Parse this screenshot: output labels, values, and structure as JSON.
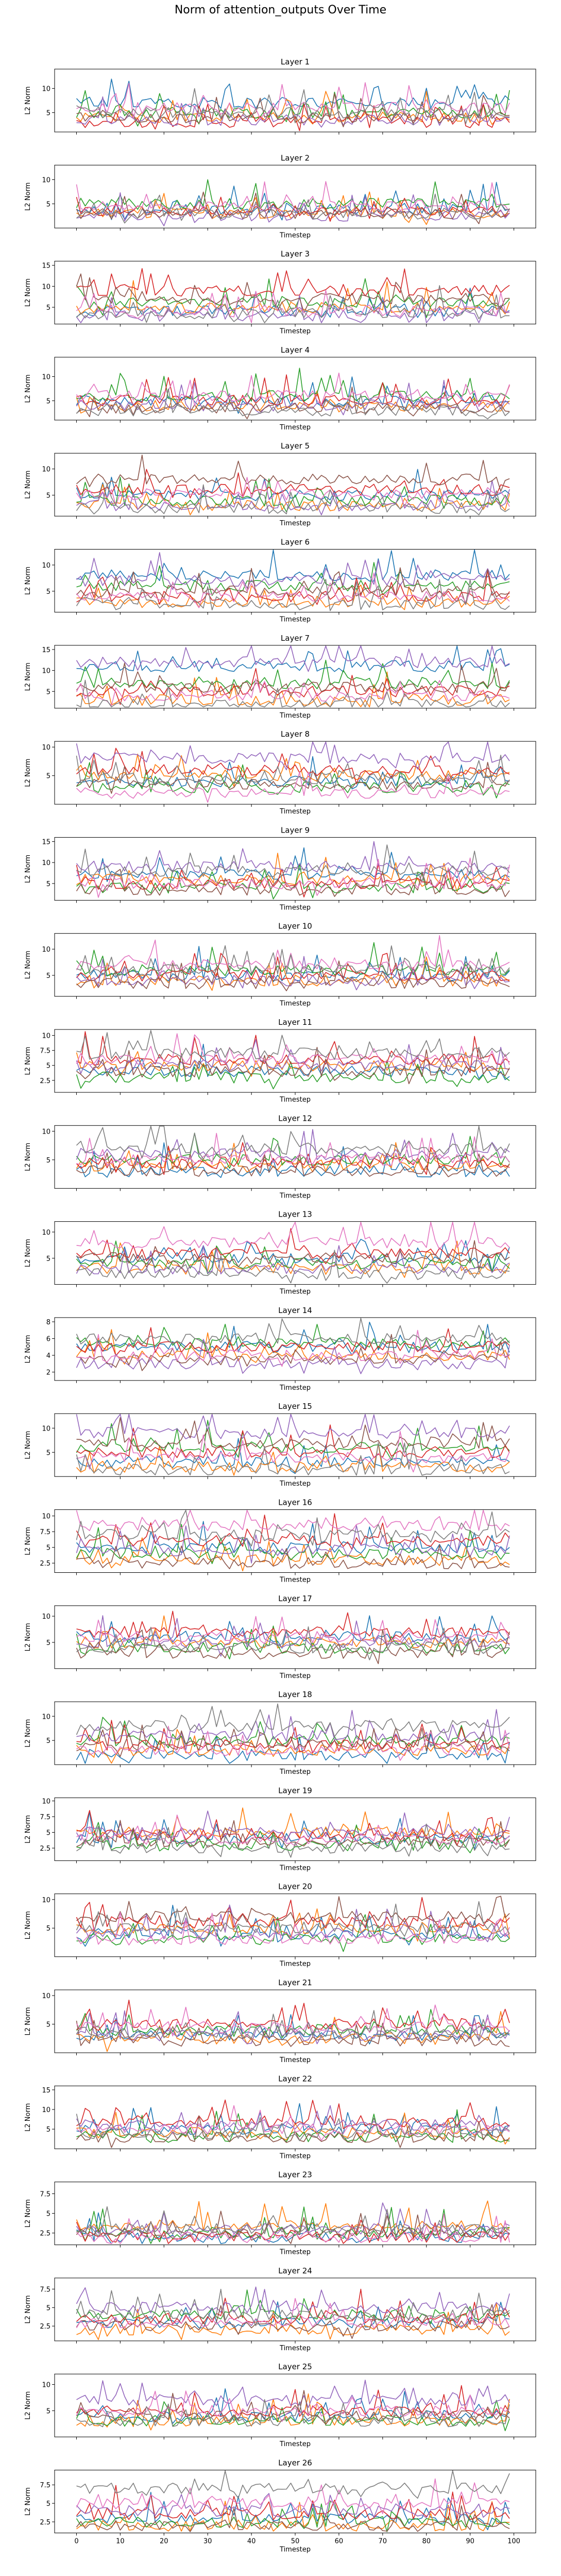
{
  "figure": {
    "suptitle": "Norm of attention_outputs Over Time"
  },
  "colors": [
    "#1f77b4",
    "#ff7f0e",
    "#2ca02c",
    "#d62728",
    "#9467bd",
    "#8c564b",
    "#e377c2",
    "#7f7f7f"
  ],
  "chart_data": [
    {
      "type": "line",
      "title": "Layer 1",
      "xlabel": "",
      "ylabel": "L2 Norm",
      "xlim": [
        -5,
        105
      ],
      "ylim": [
        1,
        14
      ],
      "yticks": [
        5,
        10
      ],
      "xticks": [
        0,
        10,
        20,
        30,
        40,
        50,
        60,
        70,
        80,
        90,
        100
      ],
      "series_levels": [
        7,
        4,
        5,
        3,
        3.5,
        4,
        6,
        5
      ]
    },
    {
      "type": "line",
      "title": "Layer 2",
      "xlabel": "Timestep",
      "ylabel": "L2 Norm",
      "xlim": [
        -5,
        105
      ],
      "ylim": [
        0,
        13
      ],
      "yticks": [
        5,
        10
      ],
      "xticks": [
        0,
        10,
        20,
        30,
        40,
        50,
        60,
        70,
        80,
        90,
        100
      ],
      "series_levels": [
        4,
        3,
        5,
        3.5,
        2.5,
        3,
        4.5,
        3
      ]
    },
    {
      "type": "line",
      "title": "Layer 3",
      "xlabel": "Timestep",
      "ylabel": "L2 Norm",
      "xlim": [
        -5,
        105
      ],
      "ylim": [
        1,
        16
      ],
      "yticks": [
        5,
        10,
        15
      ],
      "xticks": [
        0,
        10,
        20,
        30,
        40,
        50,
        60,
        70,
        80,
        90,
        100
      ],
      "series_levels": [
        4,
        5,
        6,
        9,
        3,
        7,
        4,
        3.5
      ]
    },
    {
      "type": "line",
      "title": "Layer 4",
      "xlabel": "Timestep",
      "ylabel": "L2 Norm",
      "xlim": [
        -5,
        105
      ],
      "ylim": [
        1,
        14
      ],
      "yticks": [
        5,
        10
      ],
      "xticks": [
        0,
        10,
        20,
        30,
        40,
        50,
        60,
        70,
        80,
        90,
        100
      ],
      "series_levels": [
        5,
        4,
        6,
        5,
        4,
        3.5,
        6,
        3
      ]
    },
    {
      "type": "line",
      "title": "Layer 5",
      "xlabel": "Timestep",
      "ylabel": "L2 Norm",
      "xlim": [
        -5,
        105
      ],
      "ylim": [
        1,
        13
      ],
      "yticks": [
        5,
        10
      ],
      "xticks": [
        0,
        10,
        20,
        30,
        40,
        50,
        60,
        70,
        80,
        90,
        100
      ],
      "series_levels": [
        5,
        3,
        4,
        6,
        3,
        8,
        5,
        2.5
      ]
    },
    {
      "type": "line",
      "title": "Layer 6",
      "xlabel": "Timestep",
      "ylabel": "L2 Norm",
      "xlim": [
        -5,
        105
      ],
      "ylim": [
        1,
        13
      ],
      "yticks": [
        5,
        10
      ],
      "xticks": [
        0,
        10,
        20,
        30,
        40,
        50,
        60,
        70,
        80,
        90,
        100
      ],
      "series_levels": [
        8,
        3,
        6,
        4,
        7,
        5,
        4,
        2.5
      ]
    },
    {
      "type": "line",
      "title": "Layer 7",
      "xlabel": "Timestep",
      "ylabel": "L2 Norm",
      "xlim": [
        -5,
        105
      ],
      "ylim": [
        1,
        16
      ],
      "yticks": [
        5,
        10,
        15
      ],
      "xticks": [
        0,
        10,
        20,
        30,
        40,
        50,
        60,
        70,
        80,
        90,
        100
      ],
      "series_levels": [
        11,
        3,
        7,
        5,
        12,
        6,
        4,
        2
      ]
    },
    {
      "type": "line",
      "title": "Layer 8",
      "xlabel": "Timestep",
      "ylabel": "L2 Norm",
      "xlim": [
        -5,
        105
      ],
      "ylim": [
        0,
        11
      ],
      "yticks": [
        5,
        10
      ],
      "xticks": [
        0,
        10,
        20,
        30,
        40,
        50,
        60,
        70,
        80,
        90,
        100
      ],
      "series_levels": [
        4,
        5,
        3,
        6,
        8,
        3.5,
        2,
        4.5
      ]
    },
    {
      "type": "line",
      "title": "Layer 9",
      "xlabel": "Timestep",
      "ylabel": "L2 Norm",
      "xlim": [
        -5,
        105
      ],
      "ylim": [
        1,
        16
      ],
      "yticks": [
        5,
        10,
        15
      ],
      "xticks": [
        0,
        10,
        20,
        30,
        40,
        50,
        60,
        70,
        80,
        90,
        100
      ],
      "series_levels": [
        7,
        6,
        4,
        5,
        9,
        3.5,
        5,
        8
      ]
    },
    {
      "type": "line",
      "title": "Layer 10",
      "xlabel": "Timestep",
      "ylabel": "L2 Norm",
      "xlim": [
        -5,
        105
      ],
      "ylim": [
        1,
        13
      ],
      "yticks": [
        5,
        10
      ],
      "xticks": [
        0,
        10,
        20,
        30,
        40,
        50,
        60,
        70,
        80,
        90,
        100
      ],
      "series_levels": [
        5,
        4,
        6,
        5,
        4,
        3.5,
        7,
        6
      ]
    },
    {
      "type": "line",
      "title": "Layer 11",
      "xlabel": "Timestep",
      "ylabel": "L2 Norm",
      "xlim": [
        -5,
        105
      ],
      "ylim": [
        0.5,
        11
      ],
      "yticks": [
        2.5,
        5.0,
        7.5,
        10.0
      ],
      "xticks": [
        0,
        10,
        20,
        30,
        40,
        50,
        60,
        70,
        80,
        90,
        100
      ],
      "series_levels": [
        4,
        5,
        3,
        6,
        5,
        4,
        6,
        7
      ]
    },
    {
      "type": "line",
      "title": "Layer 12",
      "xlabel": "Timestep",
      "ylabel": "L2 Norm",
      "xlim": [
        -5,
        105
      ],
      "ylim": [
        0,
        11
      ],
      "yticks": [
        5,
        10
      ],
      "xticks": [
        0,
        10,
        20,
        30,
        40,
        50,
        60,
        70,
        80,
        90,
        100
      ],
      "series_levels": [
        3,
        4,
        5,
        4.5,
        6,
        3,
        5,
        7
      ]
    },
    {
      "type": "line",
      "title": "Layer 13",
      "xlabel": "Timestep",
      "ylabel": "L2 Norm",
      "xlim": [
        -5,
        105
      ],
      "ylim": [
        0,
        12
      ],
      "yticks": [
        5,
        10
      ],
      "xticks": [
        0,
        10,
        20,
        30,
        40,
        50,
        60,
        70,
        80,
        90,
        100
      ],
      "series_levels": [
        5,
        3,
        4,
        6,
        3,
        5,
        8,
        2
      ]
    },
    {
      "type": "line",
      "title": "Layer 14",
      "xlabel": "Timestep",
      "ylabel": "L2 Norm",
      "xlim": [
        -5,
        105
      ],
      "ylim": [
        1,
        8.5
      ],
      "yticks": [
        2,
        4,
        6,
        8
      ],
      "xticks": [
        0,
        10,
        20,
        30,
        40,
        50,
        60,
        70,
        80,
        90,
        100
      ],
      "series_levels": [
        5,
        4,
        5.5,
        5,
        3,
        3.5,
        4,
        6
      ]
    },
    {
      "type": "line",
      "title": "Layer 15",
      "xlabel": "Timestep",
      "ylabel": "L2 Norm",
      "xlim": [
        -5,
        105
      ],
      "ylim": [
        0,
        13
      ],
      "yticks": [
        5,
        10
      ],
      "xticks": [
        0,
        10,
        20,
        30,
        40,
        50,
        60,
        70,
        80,
        90,
        100
      ],
      "series_levels": [
        3,
        2,
        6,
        5,
        9,
        7,
        4,
        1.5
      ]
    },
    {
      "type": "line",
      "title": "Layer 16",
      "xlabel": "Timestep",
      "ylabel": "L2 Norm",
      "xlim": [
        -5,
        105
      ],
      "ylim": [
        1,
        11
      ],
      "yticks": [
        2.5,
        5.0,
        7.5,
        10.0
      ],
      "xticks": [
        0,
        10,
        20,
        30,
        40,
        50,
        60,
        70,
        80,
        90,
        100
      ],
      "series_levels": [
        5,
        3,
        4,
        6,
        4.5,
        2.5,
        8.5,
        7
      ]
    },
    {
      "type": "line",
      "title": "Layer 17",
      "xlabel": "Timestep",
      "ylabel": "L2 Norm",
      "xlim": [
        -5,
        105
      ],
      "ylim": [
        0,
        12
      ],
      "yticks": [
        5,
        10
      ],
      "xticks": [
        0,
        10,
        20,
        30,
        40,
        50,
        60,
        70,
        80,
        90,
        100
      ],
      "series_levels": [
        6,
        5,
        4,
        7,
        5,
        3,
        6,
        4
      ]
    },
    {
      "type": "line",
      "title": "Layer 18",
      "xlabel": "Timestep",
      "ylabel": "L2 Norm",
      "xlim": [
        -5,
        105
      ],
      "ylim": [
        0,
        13
      ],
      "yticks": [
        5,
        10
      ],
      "xticks": [
        0,
        10,
        20,
        30,
        40,
        50,
        60,
        70,
        80,
        90,
        100
      ],
      "series_levels": [
        2,
        3,
        5,
        4,
        6,
        4,
        3,
        8
      ]
    },
    {
      "type": "line",
      "title": "Layer 19",
      "xlabel": "Timestep",
      "ylabel": "L2 Norm",
      "xlim": [
        -5,
        105
      ],
      "ylim": [
        0.5,
        10.5
      ],
      "yticks": [
        2.5,
        5.0,
        7.5,
        10.0
      ],
      "xticks": [
        0,
        10,
        20,
        30,
        40,
        50,
        60,
        70,
        80,
        90,
        100
      ],
      "series_levels": [
        4,
        5,
        3,
        4.5,
        5,
        3.5,
        4,
        2.5
      ]
    },
    {
      "type": "line",
      "title": "Layer 20",
      "xlabel": "Timestep",
      "ylabel": "L2 Norm",
      "xlim": [
        -5,
        105
      ],
      "ylim": [
        0,
        11
      ],
      "yticks": [
        5,
        10
      ],
      "xticks": [
        0,
        10,
        20,
        30,
        40,
        50,
        60,
        70,
        80,
        90,
        100
      ],
      "series_levels": [
        4,
        5,
        3,
        6,
        4,
        7,
        3,
        5
      ]
    },
    {
      "type": "line",
      "title": "Layer 21",
      "xlabel": "Timestep",
      "ylabel": "L2 Norm",
      "xlim": [
        -5,
        105
      ],
      "ylim": [
        0,
        11
      ],
      "yticks": [
        5,
        10
      ],
      "xticks": [
        0,
        10,
        20,
        30,
        40,
        50,
        60,
        70,
        80,
        90,
        100
      ],
      "series_levels": [
        3,
        2.5,
        4,
        5,
        3,
        2,
        4.5,
        3.5
      ]
    },
    {
      "type": "line",
      "title": "Layer 22",
      "xlabel": "Timestep",
      "ylabel": "L2 Norm",
      "xlim": [
        -5,
        105
      ],
      "ylim": [
        0,
        16
      ],
      "yticks": [
        5,
        10,
        15
      ],
      "xticks": [
        0,
        10,
        20,
        30,
        40,
        50,
        60,
        70,
        80,
        90,
        100
      ],
      "series_levels": [
        5,
        4,
        3,
        7,
        6,
        3,
        5,
        4
      ]
    },
    {
      "type": "line",
      "title": "Layer 23",
      "xlabel": "Timestep",
      "ylabel": "L2 Norm",
      "xlim": [
        -5,
        105
      ],
      "ylim": [
        1,
        9
      ],
      "yticks": [
        2.5,
        5.0,
        7.5
      ],
      "xticks": [
        0,
        10,
        20,
        30,
        40,
        50,
        60,
        70,
        80,
        90,
        100
      ],
      "series_levels": [
        2,
        3.5,
        2.5,
        2,
        3,
        2.5,
        2,
        3
      ]
    },
    {
      "type": "line",
      "title": "Layer 24",
      "xlabel": "Timestep",
      "ylabel": "L2 Norm",
      "xlim": [
        -5,
        105
      ],
      "ylim": [
        0.5,
        9
      ],
      "yticks": [
        2.5,
        5.0,
        7.5
      ],
      "xticks": [
        0,
        10,
        20,
        30,
        40,
        50,
        60,
        70,
        80,
        90,
        100
      ],
      "series_levels": [
        3,
        2,
        4,
        3.5,
        5,
        2.5,
        3,
        4
      ]
    },
    {
      "type": "line",
      "title": "Layer 25",
      "xlabel": "Timestep",
      "ylabel": "L2 Norm",
      "xlim": [
        -5,
        105
      ],
      "ylim": [
        0,
        12
      ],
      "yticks": [
        5,
        10
      ],
      "xticks": [
        0,
        10,
        20,
        30,
        40,
        50,
        60,
        70,
        80,
        90,
        100
      ],
      "series_levels": [
        4,
        3,
        3,
        5,
        7,
        4,
        5,
        3
      ]
    },
    {
      "type": "line",
      "title": "Layer 26",
      "xlabel": "Timestep",
      "ylabel": "L2 Norm",
      "xlim": [
        -5,
        105
      ],
      "ylim": [
        1,
        9.5
      ],
      "yticks": [
        2.5,
        5.0,
        7.5
      ],
      "xticks": [
        0,
        10,
        20,
        30,
        40,
        50,
        60,
        70,
        80,
        90,
        100
      ],
      "series_levels": [
        3,
        2,
        2.5,
        3.5,
        4,
        2,
        5,
        7
      ]
    }
  ]
}
